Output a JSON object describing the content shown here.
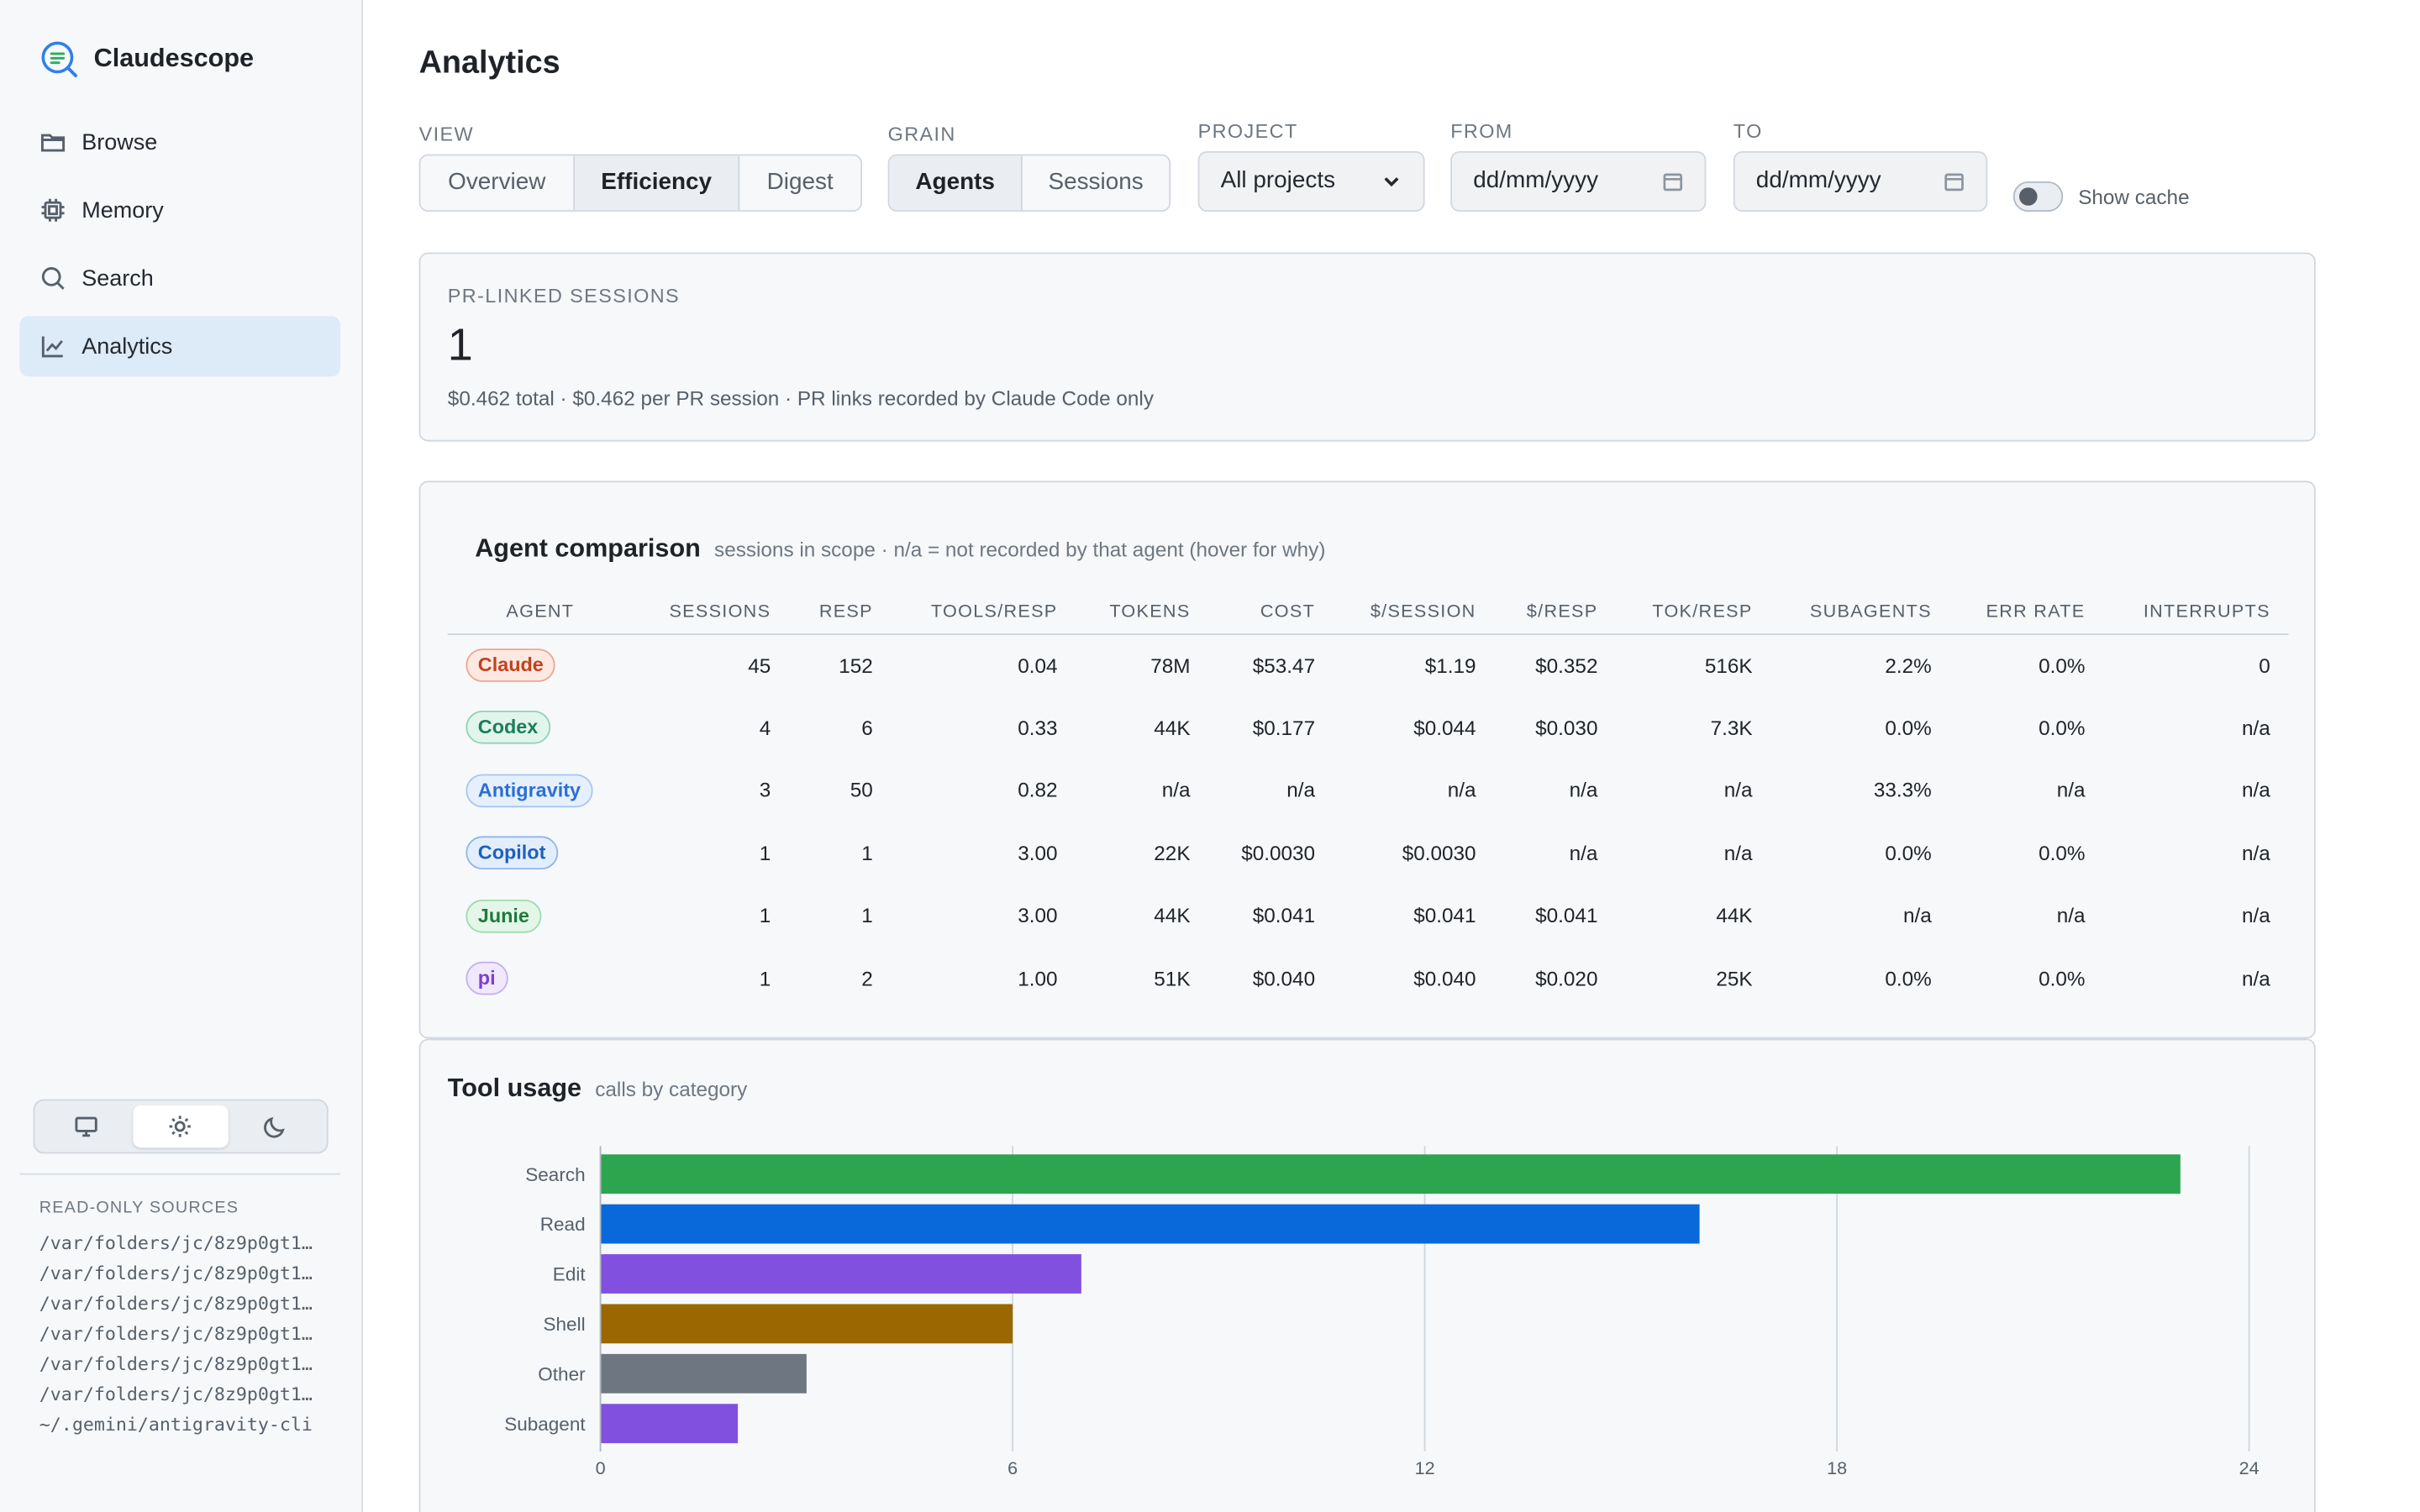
{
  "app": {
    "name": "Claudescope"
  },
  "nav": {
    "items": [
      {
        "label": "Browse",
        "icon": "folder-icon"
      },
      {
        "label": "Memory",
        "icon": "chip-icon"
      },
      {
        "label": "Search",
        "icon": "search-icon"
      },
      {
        "label": "Analytics",
        "icon": "chart-icon",
        "active": true
      }
    ]
  },
  "theme": {
    "options": [
      "system",
      "light",
      "dark"
    ],
    "selected": "light"
  },
  "sources": {
    "title": "READ-ONLY SOURCES",
    "items": [
      "/var/folders/jc/8z9p0gt1…",
      "/var/folders/jc/8z9p0gt1…",
      "/var/folders/jc/8z9p0gt1…",
      "/var/folders/jc/8z9p0gt1…",
      "/var/folders/jc/8z9p0gt1…",
      "/var/folders/jc/8z9p0gt1…",
      "~/.gemini/antigravity-cli"
    ]
  },
  "page": {
    "title": "Analytics"
  },
  "controls": {
    "view": {
      "label": "VIEW",
      "options": [
        "Overview",
        "Efficiency",
        "Digest"
      ],
      "selected": "Efficiency"
    },
    "grain": {
      "label": "GRAIN",
      "options": [
        "Agents",
        "Sessions"
      ],
      "selected": "Agents"
    },
    "project": {
      "label": "PROJECT",
      "value": "All projects"
    },
    "from": {
      "label": "FROM",
      "placeholder": "dd/mm/yyyy"
    },
    "to": {
      "label": "TO",
      "placeholder": "dd/mm/yyyy"
    },
    "show_cache": {
      "label": "Show cache",
      "on": false
    }
  },
  "pr_linked": {
    "title": "PR-LINKED SESSIONS",
    "value": "1",
    "subtitle": "$0.462 total · $0.462 per PR session · PR links recorded by Claude Code only"
  },
  "agent_comparison": {
    "title": "Agent comparison",
    "subtitle": "sessions in scope · n/a = not recorded by that agent (hover for why)",
    "columns": [
      "AGENT",
      "SESSIONS",
      "RESP",
      "TOOLS/RESP",
      "TOKENS",
      "COST",
      "$/SESSION",
      "$/RESP",
      "TOK/RESP",
      "SUBAGENTS",
      "ERR RATE",
      "INTERRUPTS"
    ],
    "rows": [
      {
        "agent": "Claude",
        "color": "#c4421a",
        "bg": "#fde9e2",
        "border": "#f0a58c",
        "cells": [
          "45",
          "152",
          "0.04",
          "78M",
          "$53.47",
          "$1.19",
          "$0.352",
          "516K",
          "2.2%",
          "0.0%",
          "0"
        ]
      },
      {
        "agent": "Codex",
        "color": "#1a7f5a",
        "bg": "#e2f5ec",
        "border": "#8fd4b4",
        "cells": [
          "4",
          "6",
          "0.33",
          "44K",
          "$0.177",
          "$0.044",
          "$0.030",
          "7.3K",
          "0.0%",
          "0.0%",
          "n/a"
        ]
      },
      {
        "agent": "Antigravity",
        "color": "#2b6fd6",
        "bg": "#e6f0fc",
        "border": "#a5c6f2",
        "cells": [
          "3",
          "50",
          "0.82",
          "n/a",
          "n/a",
          "n/a",
          "n/a",
          "n/a",
          "33.3%",
          "n/a",
          "n/a"
        ]
      },
      {
        "agent": "Copilot",
        "color": "#1f5fbf",
        "bg": "#e3eefc",
        "border": "#8fb5ec",
        "cells": [
          "1",
          "1",
          "3.00",
          "22K",
          "$0.0030",
          "$0.0030",
          "n/a",
          "n/a",
          "0.0%",
          "0.0%",
          "n/a"
        ]
      },
      {
        "agent": "Junie",
        "color": "#1e7a3a",
        "bg": "#e4f6e8",
        "border": "#9edbae",
        "cells": [
          "1",
          "1",
          "3.00",
          "44K",
          "$0.041",
          "$0.041",
          "$0.041",
          "44K",
          "n/a",
          "n/a",
          "n/a"
        ]
      },
      {
        "agent": "pi",
        "color": "#7a3fd0",
        "bg": "#f0e8fc",
        "border": "#c8aef0",
        "cells": [
          "1",
          "2",
          "1.00",
          "51K",
          "$0.040",
          "$0.040",
          "$0.020",
          "25K",
          "0.0%",
          "0.0%",
          "n/a"
        ]
      }
    ]
  },
  "tool_usage": {
    "title": "Tool usage",
    "subtitle": "calls by category"
  },
  "chart_data": {
    "type": "bar",
    "orientation": "horizontal",
    "categories": [
      "Search",
      "Read",
      "Edit",
      "Shell",
      "Other",
      "Subagent"
    ],
    "values": [
      23,
      16,
      7,
      6,
      3,
      2
    ],
    "colors": [
      "#2da44e",
      "#0969da",
      "#8250df",
      "#9a6700",
      "#6e7781",
      "#8250df"
    ],
    "xlim": [
      0,
      24
    ],
    "xticks": [
      0,
      6,
      12,
      18,
      24
    ],
    "grid": true
  }
}
